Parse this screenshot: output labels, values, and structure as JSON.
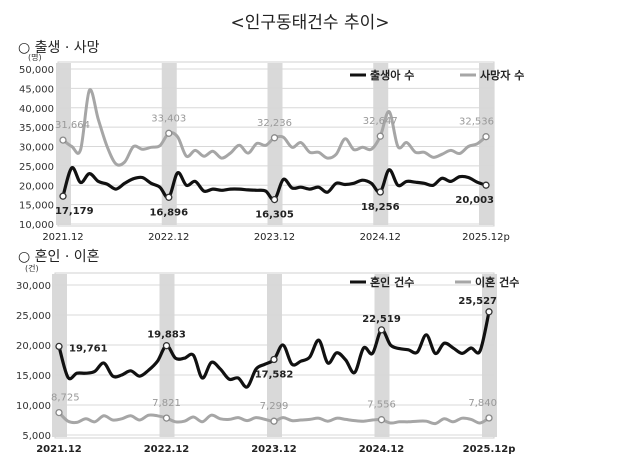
{
  "title": "<인구동태건수 추이>",
  "chart_data": [
    {
      "type": "line",
      "section_label": "○ 출생 · 사망",
      "ylabel": "(명)",
      "ylim": [
        10000,
        50000
      ],
      "yticks": [
        "10,000",
        "15,000",
        "20,000",
        "25,000",
        "30,000",
        "35,000",
        "40,000",
        "45,000",
        "50,000"
      ],
      "x_start": "2021.12",
      "x_end": "2025.12p",
      "xtick_labels": [
        "2021.12",
        "2022.12",
        "2023.12",
        "2024.12",
        "2025.12p"
      ],
      "grid": true,
      "legend": "top-right",
      "series": [
        {
          "name": "출생아 수",
          "color": "#111111",
          "values": [
            17179,
            24500,
            20700,
            23000,
            21000,
            20300,
            19000,
            20500,
            21700,
            22000,
            20500,
            19500,
            16896,
            23200,
            20000,
            21000,
            18500,
            19000,
            18700,
            19000,
            19000,
            18800,
            18700,
            18500,
            16305,
            21500,
            19300,
            19500,
            19000,
            19500,
            18200,
            20500,
            20200,
            20500,
            21300,
            20500,
            18256,
            24000,
            20000,
            21000,
            20800,
            20500,
            20000,
            21800,
            21000,
            22200,
            22000,
            20800,
            20003
          ],
          "labels": {
            "0": "17,179",
            "12": "16,896",
            "24": "16,305",
            "36": "18,256",
            "48": "20,003"
          }
        },
        {
          "name": "사망자 수",
          "color": "#a6a6a6",
          "values": [
            31664,
            30000,
            29200,
            44500,
            37000,
            30000,
            25500,
            26000,
            30000,
            29300,
            29800,
            30200,
            33403,
            32500,
            27500,
            29000,
            27500,
            28800,
            27000,
            28300,
            30300,
            28300,
            30800,
            30300,
            32236,
            32400,
            29800,
            31000,
            28500,
            28500,
            27000,
            28000,
            32000,
            29200,
            29800,
            29300,
            32647,
            39000,
            30000,
            31000,
            28500,
            28500,
            27200,
            28000,
            29000,
            28200,
            30000,
            30700,
            32536
          ],
          "labels": {
            "0": "31,664",
            "12": "33,403",
            "24": "32,236",
            "36": "32,647",
            "48": "32,536"
          }
        }
      ]
    },
    {
      "type": "line",
      "section_label": "○ 혼인 · 이혼",
      "ylabel": "(건)",
      "ylim": [
        5000,
        30000
      ],
      "yticks": [
        "5,000",
        "10,000",
        "15,000",
        "20,000",
        "25,000",
        "30,000"
      ],
      "x_start": "2021.12",
      "x_end": "2025.12p",
      "xtick_labels": [
        "2021.12",
        "2022.12",
        "2023.12",
        "2024.12",
        "2025.12p"
      ],
      "grid": true,
      "legend": "top-right",
      "series": [
        {
          "name": "혼인 건수",
          "color": "#111111",
          "values": [
            19761,
            14600,
            15300,
            15300,
            15600,
            17000,
            14800,
            15000,
            15700,
            14800,
            15800,
            17300,
            19883,
            17800,
            17800,
            18300,
            14500,
            17100,
            16000,
            14300,
            14500,
            13000,
            16000,
            16800,
            17582,
            20000,
            16800,
            17300,
            18000,
            20800,
            17000,
            18700,
            17500,
            15400,
            19500,
            18600,
            22519,
            20000,
            19400,
            19200,
            18800,
            21700,
            18600,
            20300,
            19500,
            18600,
            19500,
            19000,
            25527
          ],
          "labels": {
            "0": "19,761",
            "12": "19,883",
            "24": "17,582",
            "36": "22,519",
            "48": "25,527"
          }
        },
        {
          "name": "이혼 건수",
          "color": "#a6a6a6",
          "values": [
            8725,
            7300,
            7100,
            7700,
            7200,
            8200,
            7500,
            7700,
            8200,
            7500,
            8300,
            8200,
            7821,
            7200,
            7300,
            8000,
            7200,
            8300,
            7700,
            7600,
            7900,
            7400,
            7900,
            7600,
            7299,
            7900,
            7400,
            7500,
            7600,
            7800,
            7300,
            7800,
            7600,
            7400,
            7300,
            7500,
            7556,
            7000,
            7200,
            7200,
            7300,
            7300,
            6900,
            7700,
            7200,
            7800,
            7600,
            7000,
            7840
          ],
          "labels": {
            "0": "8,725",
            "12": "7,821",
            "24": "7,299",
            "36": "7,556",
            "48": "7,840"
          }
        }
      ]
    }
  ]
}
